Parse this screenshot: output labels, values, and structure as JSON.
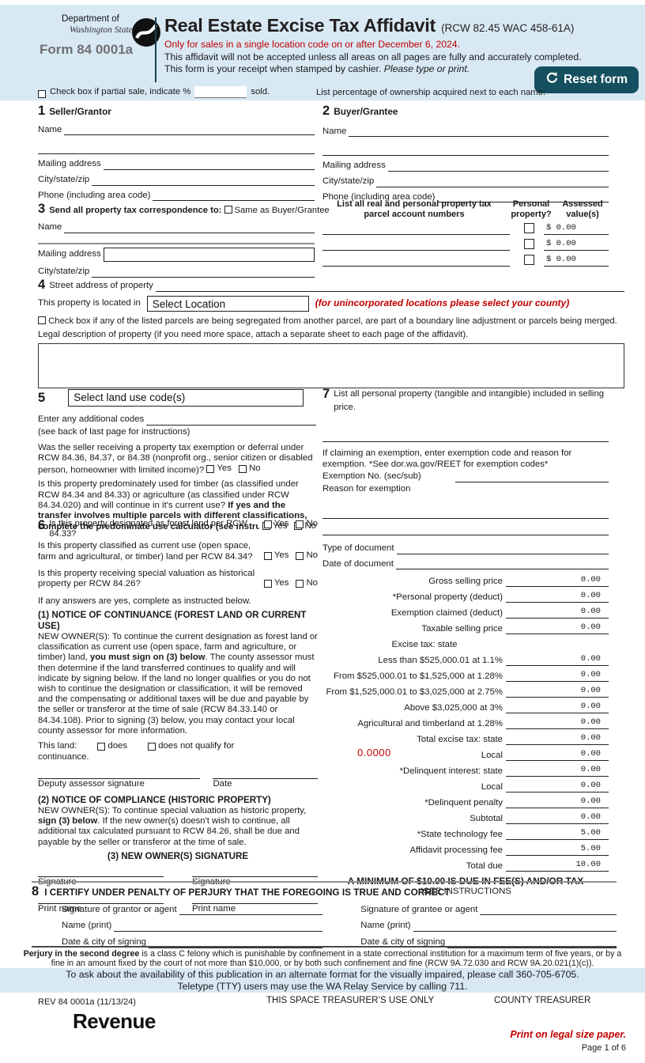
{
  "header": {
    "dept_of": "Department of",
    "revenue": "Revenue",
    "washington_state": "Washington State",
    "form_number": "Form 84 0001a",
    "title": "Real Estate Excise Tax Affidavit",
    "title_suffix": "(RCW 82.45 WAC 458-61A)",
    "red_notice": "Only for sales in a single location code on or after December 6, 2024.",
    "notice_line1": "This affidavit will not be accepted unless all areas on all pages are fully and accurately completed.",
    "notice_line2": "This form is your receipt when stamped by cashier.",
    "notice_line2_italic": "Please type or print.",
    "reset_button": "Reset form",
    "partial_sale_label": "Check box if partial sale, indicate %",
    "partial_sale_suffix": "sold.",
    "ownership_note": "List percentage of ownership acquired next to each name."
  },
  "labels": {
    "name": "Name",
    "mailing_address": "Mailing address",
    "city_state_zip": "City/state/zip",
    "phone": "Phone (including area code)",
    "yes": "Yes",
    "no": "No"
  },
  "s1": {
    "num": "1",
    "title": "Seller/Grantor"
  },
  "s2": {
    "num": "2",
    "title": "Buyer/Grantee"
  },
  "s3": {
    "num": "3",
    "intro": "Send all property tax correspondence to:",
    "same_as": "Same as Buyer/Grantee"
  },
  "parcels": {
    "col1_line1": "List all real and personal property tax",
    "col1_line2": "parcel account numbers",
    "col2_line1": "Personal",
    "col2_line2": "property?",
    "col3_line1": "Assessed",
    "col3_line2": "value(s)",
    "rows": [
      {
        "value": "$ 0.00"
      },
      {
        "value": "$ 0.00"
      },
      {
        "value": "$ 0.00"
      }
    ]
  },
  "s4": {
    "num": "4",
    "street_label": "Street address of property",
    "located_label": "This property is located in",
    "location_select": "Select Location",
    "county_note": "(for unincorporated locations please select your county)",
    "segregated": "Check box if any of the listed parcels are being segregated from another parcel, are part of a boundary line adjustment or parcels being merged.",
    "legal_label": "Legal description of property (if you need more space, attach a separate sheet to each page of the affidavit)."
  },
  "s5": {
    "num": "5",
    "land_use_select": "Select land use code(s)",
    "additional_codes": "Enter any additional codes",
    "see_back": "(see back of last page for instructions)",
    "q_exemption": "Was the seller receiving a property tax exemption or deferral under RCW 84.36, 84.37, or 84.38 (nonprofit org., senior citizen or disabled person, homeowner with limited income)?",
    "q_timber_pre": "Is this property predominately used for timber (as classified under RCW 84.34 and 84.33) or agriculture (as classified under RCW 84.34.020) and will continue in it's current use? ",
    "q_timber_bold": "If yes and the transfer involves multiple parcels with different classifications, complete the predominate use calculator (see instructions)"
  },
  "s6": {
    "num": "6",
    "q_forest": "Is this property designated as forest land per RCW 84.33?",
    "q_current_use": "Is this property classified as current use (open space, farm and agricultural, or timber) land per RCW 84.34?",
    "q_historical": "Is this property receiving special valuation as historical property per RCW 84.26?",
    "if_yes": "If any answers are yes, complete as instructed below.",
    "notice1_title": "(1) NOTICE OF CONTINUANCE (FOREST LAND OR CURRENT USE)",
    "notice1_pre": "NEW OWNER(S): To continue the current designation as forest land or classification as current use (open space, farm and agriculture, or timber) land, ",
    "notice1_bold": "you must sign on (3) below",
    "notice1_post": ". The county assessor must then determine if the land transferred continues to qualify and will indicate by signing below. If the land no longer qualifies or you do not wish to continue the designation or classification, it will be removed and the compensating or additional taxes will be due and payable by the seller or transferor at the time of sale (RCW 84.33.140 or 84.34.108). Prior to signing (3) below, you may contact your local county assessor for more information.",
    "this_land": "This land:",
    "does": "does",
    "does_not": "does not qualify for",
    "continuance": "continuance.",
    "deputy_sig": "Deputy assessor signature",
    "date": "Date",
    "notice2_title": "(2) NOTICE OF COMPLIANCE (HISTORIC PROPERTY)",
    "notice2_pre": "NEW OWNER(S): To continue special valuation as historic property, ",
    "notice2_bold": "sign (3) below",
    "notice2_post": ". If the new owner(s) doesn't wish to continue, all additional tax calculated pursuant to RCW 84.26, shall be due and payable by the seller or transferor at the time of sale.",
    "notice3_title": "(3) NEW OWNER(S) SIGNATURE",
    "signature": "Signature",
    "print_name": "Print name"
  },
  "s7": {
    "num": "7",
    "intro": "List all personal property (tangible and intangible) included in selling price.",
    "exemption_note_line1": "If claiming an exemption, enter exemption code and reason for",
    "exemption_note_line2": "exemption. *See dor.wa.gov/REET for exemption codes*",
    "exemption_no": "Exemption No. (sec/sub)",
    "reason": "Reason for exemption",
    "type_of_document": "Type of document",
    "date_of_document": "Date of document"
  },
  "tax": {
    "rows": [
      {
        "label": "Gross selling price",
        "value": "0.00"
      },
      {
        "label": "*Personal property (deduct)",
        "value": "0.00"
      },
      {
        "label": "Exemption claimed (deduct)",
        "value": "0.00"
      },
      {
        "label": "Taxable selling price",
        "value": "0.00"
      },
      {
        "header": "Excise tax: state"
      },
      {
        "label": "Less than $525,000.01 at 1.1%",
        "value": "0.00"
      },
      {
        "label": "From $525,000.01 to $1,525,000 at 1.28%",
        "value": "0.00"
      },
      {
        "label": "From $1,525,000.01 to $3,025,000 at 2.75%",
        "value": "0.00"
      },
      {
        "label": "Above $3,025,000 at 3%",
        "value": "0.00"
      },
      {
        "label": "Agricultural and timberland at 1.28%",
        "value": "0.00"
      },
      {
        "label": "Total excise tax: state",
        "value": "0.00"
      },
      {
        "pre": "0.0000",
        "label": "Local",
        "value": "0.00"
      },
      {
        "label": "*Delinquent interest: state",
        "value": "0.00"
      },
      {
        "label": "Local",
        "value": "0.00"
      },
      {
        "label": "*Delinquent penalty",
        "value": "0.00"
      },
      {
        "label": "Subtotal",
        "value": "0.00"
      },
      {
        "label": "*State technology fee",
        "value": "5.00"
      },
      {
        "label": "Affidavit processing fee",
        "value": "5.00"
      },
      {
        "label": "Total due",
        "value": "10.00"
      }
    ],
    "minimum_note": "A MINIMUM OF $10.00 IS DUE IN FEE(S) AND/OR TAX",
    "see_instructions": "*SEE INSTRUCTIONS"
  },
  "s8": {
    "num": "8",
    "certify": "I CERTIFY UNDER PENALTY OF PERJURY THAT THE FOREGOING IS TRUE AND CORRECT",
    "sig_grantor": "Signature of grantor or agent",
    "sig_grantee": "Signature of grantee or agent",
    "name_print": "Name (print)",
    "date_city": "Date & city of signing"
  },
  "footer": {
    "perjury_bold": "Perjury in the second degree",
    "perjury_rest": " is a class C felony which is punishable by confinement in a state correctional institution for a maximum term of five years, or by a fine in an amount fixed by the court of not more than $10,000, or by both such confinement and fine (RCW 9A.72.030 and RCW 9A.20.021(1)(c)).",
    "alt_format": "To ask about the availability of this publication in an alternate format for the visually impaired, please call 360-705-6705. Teletype (TTY) users may use the WA Relay Service by calling 711.",
    "rev": "REV 84 0001a (11/13/24)",
    "treasurer_space": "THIS SPACE TREASURER’S USE ONLY",
    "county_treasurer": "COUNTY TREASURER",
    "print_note": "Print on legal size paper.",
    "page": "Page 1 of 6"
  },
  "colors": {
    "header_bg": "#d8e9f4",
    "accent_red": "#c00000",
    "button_teal": "#14505f",
    "form_number_gray": "#6f7072"
  }
}
